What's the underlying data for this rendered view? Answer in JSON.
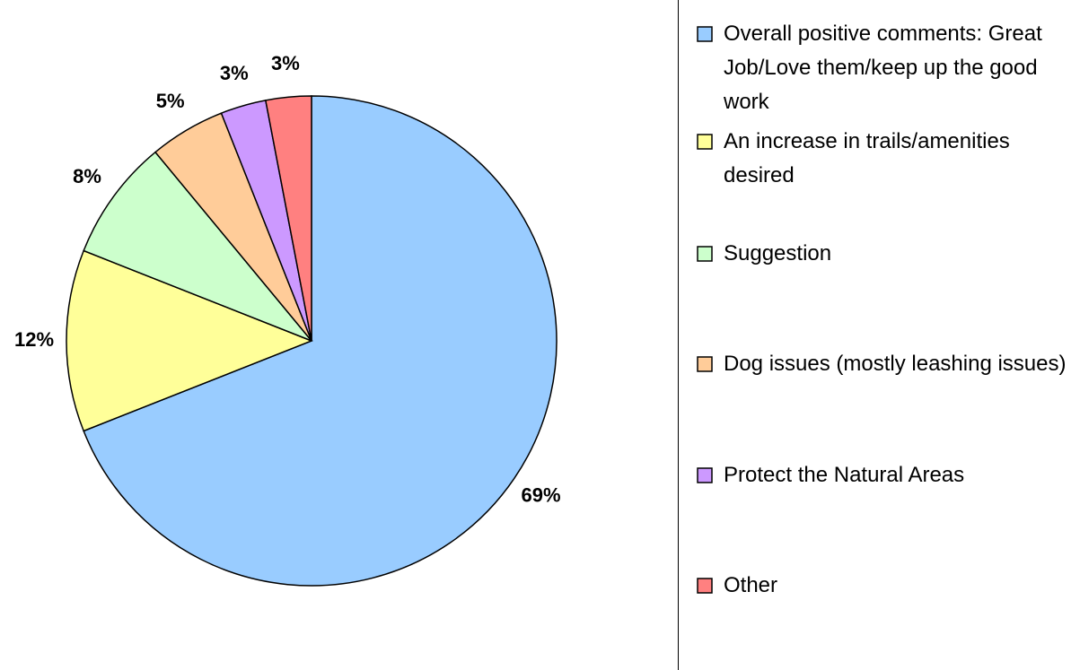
{
  "chart_data": {
    "type": "pie",
    "categories": [
      "Overall positive comments: Great Job/Love them/keep up the good work",
      "An increase in trails/amenities desired",
      "Suggestion",
      "Dog issues (mostly leashing issues)",
      "Protect the Natural Areas",
      "Other"
    ],
    "values": [
      69,
      12,
      8,
      5,
      3,
      3
    ],
    "value_labels": [
      "69%",
      "12%",
      "8%",
      "5%",
      "3%",
      "3%"
    ],
    "colors": [
      "#99ccff",
      "#ffff99",
      "#ccffcc",
      "#ffcc99",
      "#cc99ff",
      "#ff8080"
    ],
    "legend": "right"
  }
}
